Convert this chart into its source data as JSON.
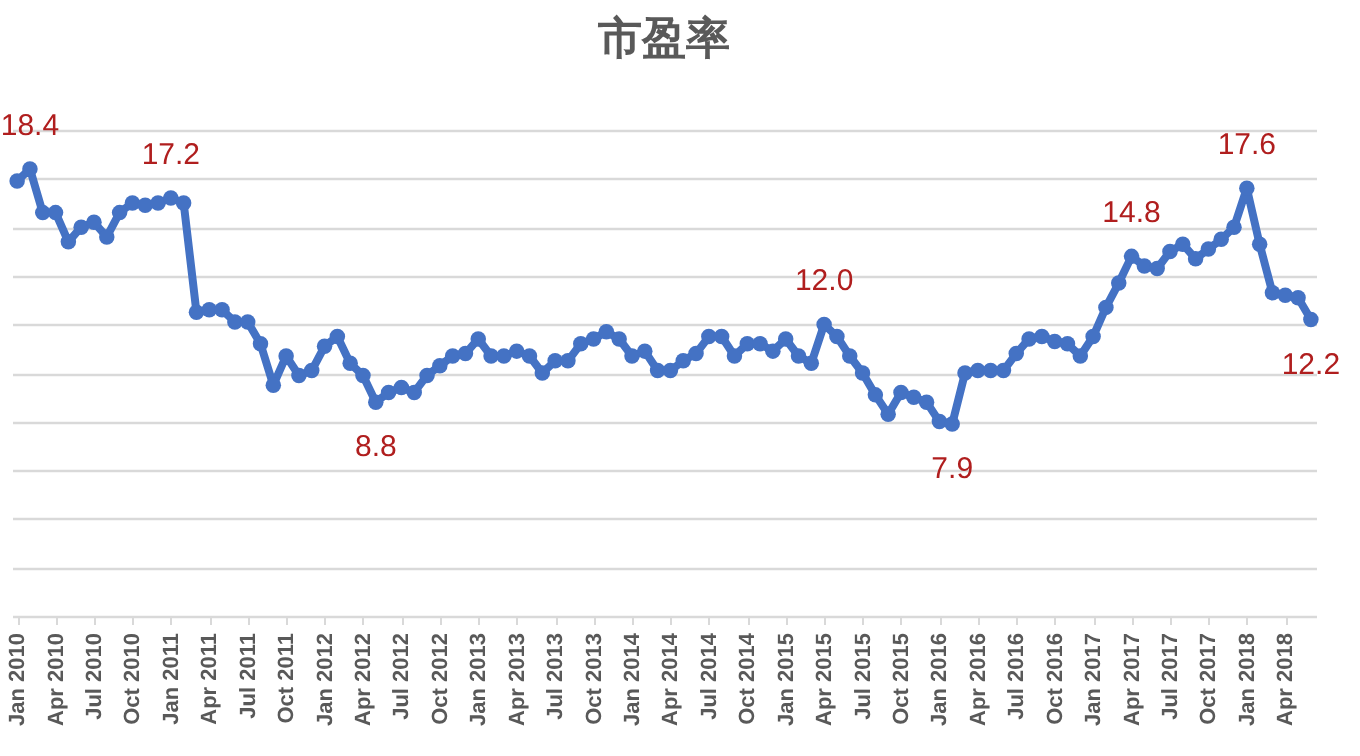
{
  "chart_data": {
    "type": "line",
    "title": "市盈率",
    "categories": [
      "Jan 2010",
      null,
      null,
      "Apr 2010",
      null,
      null,
      "Jul 2010",
      null,
      null,
      "Oct 2010",
      null,
      null,
      "Jan 2011",
      null,
      null,
      "Apr 2011",
      null,
      null,
      "Jul 2011",
      null,
      null,
      "Oct 2011",
      null,
      null,
      "Jan 2012",
      null,
      null,
      "Apr 2012",
      null,
      null,
      "Jul 2012",
      null,
      null,
      "Oct 2012",
      null,
      null,
      "Jan 2013",
      null,
      null,
      "Apr 2013",
      null,
      null,
      "Jul 2013",
      null,
      null,
      "Oct 2013",
      null,
      null,
      "Jan 2014",
      null,
      null,
      "Apr 2014",
      null,
      null,
      "Jul 2014",
      null,
      null,
      "Oct 2014",
      null,
      null,
      "Jan 2015",
      null,
      null,
      "Apr 2015",
      null,
      null,
      "Jul 2015",
      null,
      null,
      "Oct 2015",
      null,
      null,
      "Jan 2016",
      null,
      null,
      "Apr 2016",
      null,
      null,
      "Jul 2016",
      null,
      null,
      "Oct 2016",
      null,
      null,
      "Jan 2017",
      null,
      null,
      "Apr 2017",
      null,
      null,
      "Jul 2017",
      null,
      null,
      "Oct 2017",
      null,
      null,
      "Jan 2018",
      null,
      null,
      "Apr 2018",
      null,
      null
    ],
    "series": [
      {
        "color": "#4472c4",
        "values": [
          17.9,
          18.4,
          16.6,
          16.6,
          15.4,
          16.0,
          16.2,
          15.6,
          16.6,
          17.0,
          16.9,
          17.0,
          17.2,
          17.0,
          12.5,
          12.6,
          12.6,
          12.1,
          12.1,
          11.2,
          9.5,
          10.7,
          9.9,
          10.1,
          11.1,
          11.5,
          10.4,
          9.9,
          8.8,
          9.2,
          9.4,
          9.2,
          9.9,
          10.3,
          10.7,
          10.8,
          11.4,
          10.7,
          10.7,
          10.9,
          10.7,
          10.0,
          10.5,
          10.5,
          11.2,
          11.4,
          11.7,
          11.4,
          10.7,
          10.9,
          10.1,
          10.1,
          10.5,
          10.8,
          11.5,
          11.5,
          10.7,
          11.2,
          11.2,
          10.9,
          11.4,
          10.7,
          10.4,
          12.0,
          11.5,
          10.7,
          10.0,
          9.1,
          8.3,
          9.2,
          9.0,
          8.8,
          8.0,
          7.9,
          10.0,
          10.1,
          10.1,
          10.1,
          10.8,
          11.4,
          11.5,
          11.3,
          11.2,
          10.7,
          11.5,
          12.7,
          13.7,
          14.8,
          14.4,
          14.3,
          15.0,
          15.3,
          14.7,
          15.1,
          15.5,
          16.0,
          17.6,
          15.3,
          13.3,
          13.2,
          13.1,
          12.2
        ],
        "value_labels": [
          null,
          "18.4",
          null,
          null,
          null,
          null,
          null,
          null,
          null,
          null,
          null,
          null,
          "17.2",
          null,
          null,
          null,
          null,
          null,
          null,
          null,
          null,
          null,
          null,
          null,
          null,
          null,
          null,
          null,
          "8.8",
          null,
          null,
          null,
          null,
          null,
          null,
          null,
          null,
          null,
          null,
          null,
          null,
          null,
          null,
          null,
          null,
          null,
          null,
          null,
          null,
          null,
          null,
          null,
          null,
          null,
          null,
          null,
          null,
          null,
          null,
          null,
          null,
          null,
          null,
          "12.0",
          null,
          null,
          null,
          null,
          null,
          null,
          null,
          null,
          null,
          "7.9",
          null,
          null,
          null,
          null,
          null,
          null,
          null,
          null,
          null,
          null,
          null,
          null,
          null,
          "14.8",
          null,
          null,
          null,
          null,
          null,
          null,
          null,
          null,
          "17.6",
          null,
          null,
          null,
          null,
          "12.2"
        ]
      }
    ],
    "ylim": [
      0,
      20
    ],
    "tick_labels": "x",
    "grid": "y",
    "marker": "circle",
    "line_style": "solid"
  }
}
